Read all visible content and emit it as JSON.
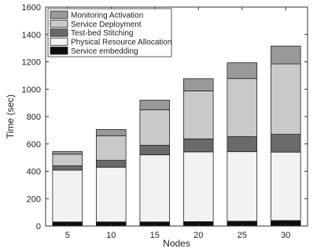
{
  "chart_data": {
    "type": "bar",
    "stacked": true,
    "title": "",
    "xlabel": "Nodes",
    "ylabel": "Time (sec)",
    "categories": [
      "5",
      "10",
      "15",
      "20",
      "25",
      "30"
    ],
    "ylim": [
      0,
      1600
    ],
    "yticks": [
      0,
      200,
      400,
      600,
      800,
      1000,
      1200,
      1400,
      1600
    ],
    "grid": false,
    "legend_position": "top-left",
    "series": [
      {
        "name": "Service embedding",
        "color": "#0d0d0d",
        "values": [
          30,
          30,
          30,
          32,
          35,
          40
        ]
      },
      {
        "name": "Physical Resource Allocation",
        "color": "#f2f2f2",
        "values": [
          378,
          400,
          490,
          510,
          508,
          500
        ]
      },
      {
        "name": "Test-bed Stitching",
        "color": "#6a6a6a",
        "values": [
          32,
          50,
          70,
          95,
          110,
          130
        ]
      },
      {
        "name": "Service Deployment",
        "color": "#c9c9c9",
        "values": [
          85,
          180,
          260,
          350,
          425,
          515
        ]
      },
      {
        "name": "Monitoring Activation",
        "color": "#999999",
        "values": [
          20,
          45,
          70,
          90,
          115,
          130
        ]
      }
    ]
  }
}
